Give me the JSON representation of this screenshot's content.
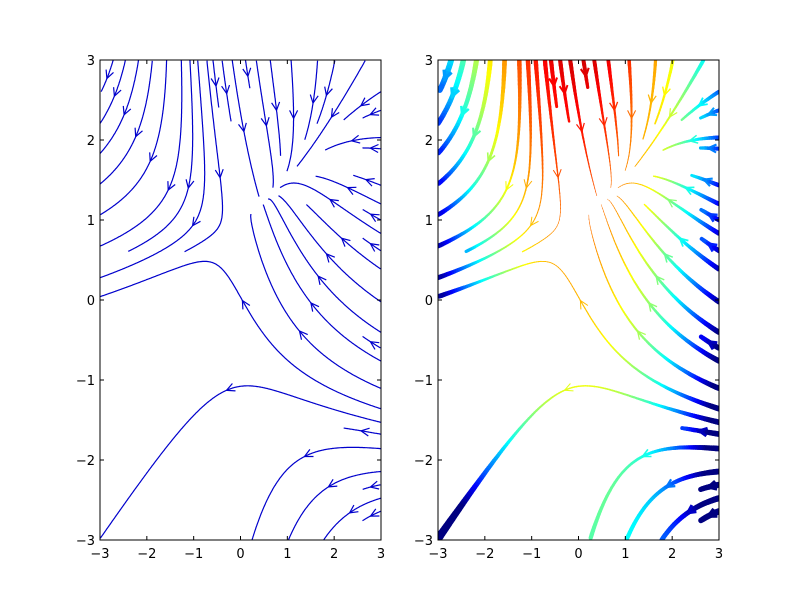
{
  "chart_data": [
    {
      "type": "streamplot",
      "title": "",
      "xlabel": "",
      "ylabel": "",
      "xlim": [
        -3,
        3
      ],
      "ylim": [
        -3,
        3
      ],
      "xticks": [
        -3,
        -2,
        -1,
        0,
        1,
        2,
        3
      ],
      "yticks": [
        -3,
        -2,
        -1,
        0,
        1,
        2,
        3
      ],
      "xtick_labels": [
        "−3",
        "−2",
        "−1",
        "0",
        "1",
        "2",
        "3"
      ],
      "ytick_labels": [
        "−3",
        "−2",
        "−1",
        "0",
        "1",
        "2",
        "3"
      ],
      "grid": false,
      "field": {
        "u": "-1 - x^2 + y",
        "v": "1 + x - y^2"
      },
      "color": "#0000cc",
      "colormap": null,
      "linewidth": "constant"
    },
    {
      "type": "streamplot",
      "title": "",
      "xlabel": "",
      "ylabel": "",
      "xlim": [
        -3,
        3
      ],
      "ylim": [
        -3,
        3
      ],
      "xticks": [
        -3,
        -2,
        -1,
        0,
        1,
        2,
        3
      ],
      "yticks": [
        -3,
        -2,
        -1,
        0,
        1,
        2,
        3
      ],
      "xtick_labels": [
        "−3",
        "−2",
        "−1",
        "0",
        "1",
        "2",
        "3"
      ],
      "ytick_labels": [
        "−3",
        "−2",
        "−1",
        "0",
        "1",
        "2",
        "3"
      ],
      "grid": false,
      "field": {
        "u": "-1 - x^2 + y",
        "v": "1 + x - y^2"
      },
      "color_by": "u",
      "colormap": "jet",
      "linewidth": "scaled by speed"
    }
  ]
}
